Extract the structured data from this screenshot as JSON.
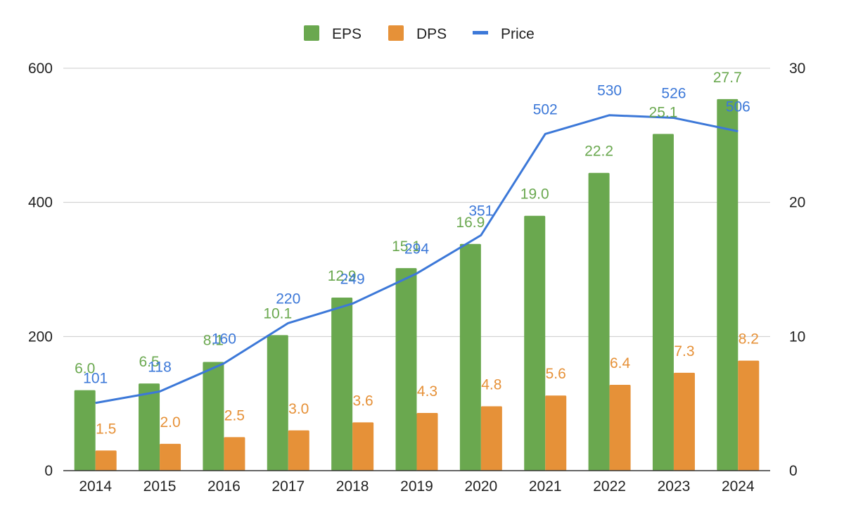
{
  "chart_data": {
    "type": "bar",
    "categories": [
      "2014",
      "2015",
      "2016",
      "2017",
      "2018",
      "2019",
      "2020",
      "2021",
      "2022",
      "2023",
      "2024"
    ],
    "series": [
      {
        "name": "EPS",
        "type": "bar",
        "axis": "right",
        "color": "#6aa84f",
        "values": [
          6.0,
          6.5,
          8.1,
          10.1,
          12.9,
          15.1,
          16.9,
          19.0,
          22.2,
          25.1,
          27.7
        ],
        "data_labels": [
          "6.0",
          "6.5",
          "8.1",
          "10.1",
          "12.9",
          "15.1",
          "16.9",
          "19.0",
          "22.2",
          "25.1",
          "27.7"
        ]
      },
      {
        "name": "DPS",
        "type": "bar",
        "axis": "right",
        "color": "#e69138",
        "values": [
          1.5,
          2.0,
          2.5,
          3.0,
          3.6,
          4.3,
          4.8,
          5.6,
          6.4,
          7.3,
          8.2
        ],
        "data_labels": [
          "1.5",
          "2.0",
          "2.5",
          "3.0",
          "3.6",
          "4.3",
          "4.8",
          "5.6",
          "6.4",
          "7.3",
          "8.2"
        ]
      },
      {
        "name": "Price",
        "type": "line",
        "axis": "left",
        "color": "#3c78d8",
        "values": [
          101,
          118,
          160,
          220,
          249,
          294,
          351,
          502,
          530,
          526,
          506
        ],
        "data_labels": [
          "101",
          "118",
          "160",
          "220",
          "249",
          "294",
          "351",
          "502",
          "530",
          "526",
          "506"
        ]
      }
    ],
    "left_axis": {
      "ylim": [
        0,
        600
      ],
      "ticks": [
        "0",
        "200",
        "400",
        "600"
      ]
    },
    "right_axis": {
      "ylim": [
        0,
        30
      ],
      "ticks": [
        "0",
        "10",
        "20",
        "30"
      ]
    },
    "grid": true,
    "legend": {
      "position": "top-center",
      "entries": [
        "EPS",
        "DPS",
        "Price"
      ]
    },
    "colors": {
      "grid": "#cccccc",
      "axis": "#333333",
      "text": "#222222"
    }
  }
}
